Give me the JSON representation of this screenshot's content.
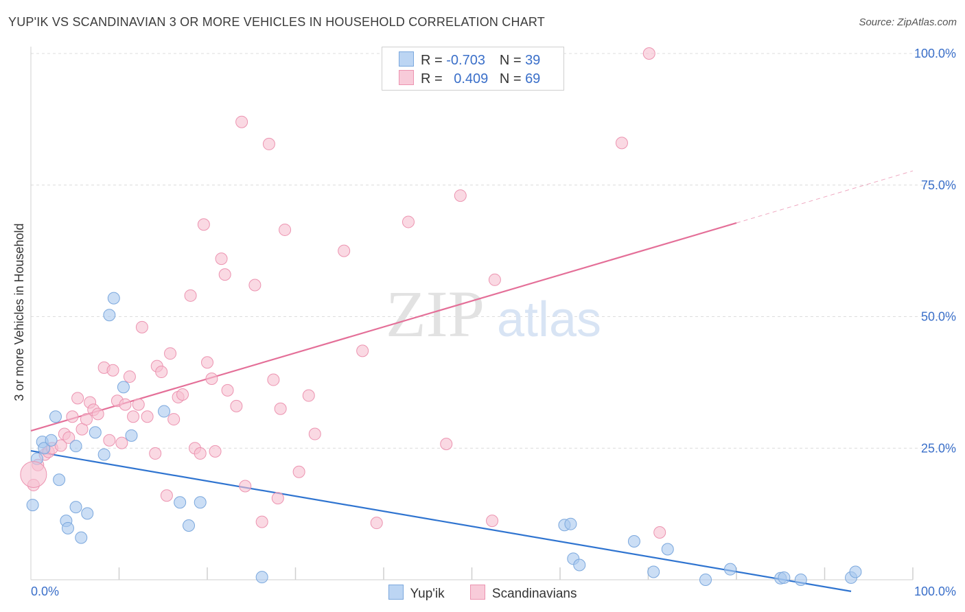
{
  "header": {
    "title": "YUP'IK VS SCANDINAVIAN 3 OR MORE VEHICLES IN HOUSEHOLD CORRELATION CHART",
    "source": "Source: ZipAtlas.com"
  },
  "legend": {
    "rows": [
      {
        "r_label": "R =",
        "r_value": "-0.703",
        "n_label": "N =",
        "n_value": "39"
      },
      {
        "r_label": "R =",
        "r_value": "0.409",
        "n_label": "N =",
        "n_value": "69"
      }
    ]
  },
  "watermark": {
    "zip": "ZIP",
    "atlas": "atlas"
  },
  "colors": {
    "blue_fill": "#a9c8ee",
    "blue_stroke": "#7aa7dd",
    "blue_line": "#2f74d0",
    "pink_fill": "#f6bfd0",
    "pink_stroke": "#ec93b0",
    "pink_line": "#e46f98",
    "tick_text": "#3a6fc9"
  },
  "chart_data": {
    "type": "scatter",
    "title": "YUP'IK VS SCANDINAVIAN 3 OR MORE VEHICLES IN HOUSEHOLD CORRELATION CHART",
    "xlabel": "",
    "ylabel": "3 or more Vehicles in Household",
    "xlim": [
      0,
      100
    ],
    "ylim": [
      0,
      100
    ],
    "x_tick_labels": [
      "0.0%",
      "100.0%"
    ],
    "y_tick_labels": [
      "25.0%",
      "50.0%",
      "75.0%",
      "100.0%"
    ],
    "y_ticks": [
      25,
      50,
      75,
      100
    ],
    "grid": true,
    "legend_position": "top-center",
    "series": [
      {
        "name": "Yup'ik",
        "color": "blue",
        "trend": {
          "x": [
            0,
            93
          ],
          "y": [
            24.5,
            -2.2
          ]
        },
        "points": [
          [
            0.2,
            14.2
          ],
          [
            0.7,
            23.0
          ],
          [
            1.3,
            26.2
          ],
          [
            1.5,
            25.0
          ],
          [
            2.3,
            26.5
          ],
          [
            2.8,
            31.0
          ],
          [
            3.2,
            19.0
          ],
          [
            5.1,
            25.4
          ],
          [
            5.1,
            13.8
          ],
          [
            4.0,
            11.2
          ],
          [
            4.2,
            9.8
          ],
          [
            5.7,
            8.0
          ],
          [
            6.4,
            12.6
          ],
          [
            7.3,
            28.0
          ],
          [
            8.3,
            23.8
          ],
          [
            8.9,
            50.3
          ],
          [
            9.4,
            53.5
          ],
          [
            10.5,
            36.6
          ],
          [
            11.4,
            27.4
          ],
          [
            15.1,
            32.0
          ],
          [
            16.9,
            14.7
          ],
          [
            17.9,
            10.3
          ],
          [
            19.2,
            14.7
          ],
          [
            26.2,
            0.5
          ],
          [
            60.5,
            10.4
          ],
          [
            61.2,
            10.6
          ],
          [
            61.5,
            4.0
          ],
          [
            62.2,
            2.8
          ],
          [
            68.4,
            7.3
          ],
          [
            70.6,
            1.5
          ],
          [
            72.2,
            5.8
          ],
          [
            76.5,
            0.0
          ],
          [
            79.3,
            2.0
          ],
          [
            85.0,
            0.3
          ],
          [
            85.4,
            0.4
          ],
          [
            87.3,
            0.0
          ],
          [
            93.0,
            0.4
          ],
          [
            93.5,
            1.5
          ],
          [
            43.0,
            100.0
          ]
        ]
      },
      {
        "name": "Scandinavians",
        "color": "pink",
        "trend": {
          "x": [
            0,
            80
          ],
          "y": [
            28.3,
            67.8
          ]
        },
        "trend_dashed": {
          "x": [
            80,
            100
          ],
          "y": [
            67.8,
            77.7
          ]
        },
        "points": [
          [
            0.3,
            18.0
          ],
          [
            0.8,
            21.8
          ],
          [
            1.6,
            23.8
          ],
          [
            2.0,
            24.3
          ],
          [
            2.4,
            25.0
          ],
          [
            3.4,
            25.5
          ],
          [
            3.8,
            27.7
          ],
          [
            4.3,
            27.0
          ],
          [
            4.7,
            31.0
          ],
          [
            5.3,
            34.5
          ],
          [
            5.8,
            28.6
          ],
          [
            6.3,
            30.5
          ],
          [
            6.7,
            33.7
          ],
          [
            7.1,
            32.3
          ],
          [
            7.6,
            31.5
          ],
          [
            8.3,
            40.3
          ],
          [
            8.9,
            26.5
          ],
          [
            9.3,
            39.8
          ],
          [
            9.8,
            34.0
          ],
          [
            10.3,
            26.0
          ],
          [
            10.7,
            33.3
          ],
          [
            11.2,
            38.6
          ],
          [
            11.6,
            31.0
          ],
          [
            12.2,
            33.3
          ],
          [
            12.6,
            48.0
          ],
          [
            13.2,
            31.0
          ],
          [
            14.1,
            24.0
          ],
          [
            14.3,
            40.6
          ],
          [
            14.8,
            39.5
          ],
          [
            15.4,
            16.0
          ],
          [
            15.8,
            43.0
          ],
          [
            16.2,
            30.5
          ],
          [
            16.7,
            34.7
          ],
          [
            17.2,
            35.2
          ],
          [
            18.1,
            54.0
          ],
          [
            18.6,
            25.0
          ],
          [
            19.2,
            24.0
          ],
          [
            19.6,
            67.5
          ],
          [
            20.0,
            41.3
          ],
          [
            20.9,
            24.4
          ],
          [
            21.6,
            61.0
          ],
          [
            22.0,
            58.0
          ],
          [
            22.3,
            36.0
          ],
          [
            23.3,
            33.0
          ],
          [
            23.9,
            87.0
          ],
          [
            24.3,
            17.8
          ],
          [
            25.4,
            56.0
          ],
          [
            26.2,
            11.0
          ],
          [
            27.0,
            82.8
          ],
          [
            27.5,
            38.0
          ],
          [
            28.0,
            15.5
          ],
          [
            28.3,
            32.5
          ],
          [
            28.8,
            66.5
          ],
          [
            30.4,
            20.5
          ],
          [
            31.5,
            35.0
          ],
          [
            32.2,
            27.7
          ],
          [
            35.5,
            62.5
          ],
          [
            37.6,
            43.5
          ],
          [
            39.2,
            10.8
          ],
          [
            42.8,
            68.0
          ],
          [
            43.5,
            100.0
          ],
          [
            47.1,
            25.8
          ],
          [
            48.7,
            73.0
          ],
          [
            52.3,
            11.2
          ],
          [
            52.6,
            57.0
          ],
          [
            67.0,
            83.0
          ],
          [
            70.1,
            100.0
          ],
          [
            71.3,
            9.0
          ],
          [
            20.5,
            38.2
          ]
        ]
      }
    ]
  },
  "bottom_legend": {
    "items": [
      "Yup'ik",
      "Scandinavians"
    ]
  }
}
